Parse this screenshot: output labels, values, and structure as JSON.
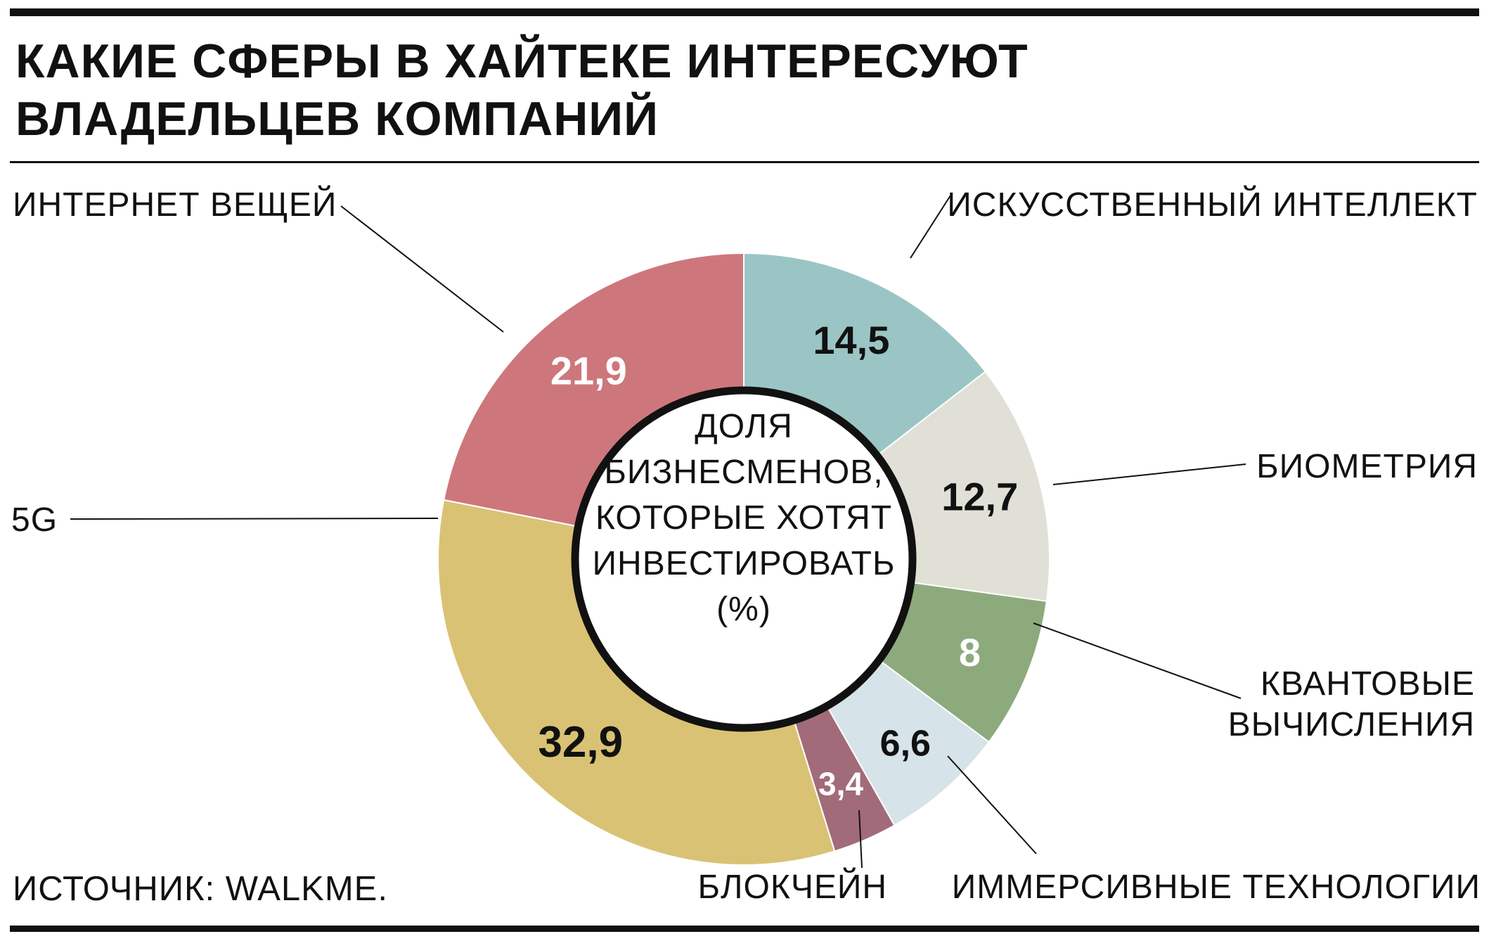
{
  "title": {
    "line1": "КАКИЕ СФЕРЫ В ХАЙТЕКЕ ИНТЕРЕСУЮТ",
    "line2": "ВЛАДЕЛЬЦЕВ КОМПАНИЙ"
  },
  "source": "ИСТОЧНИК: WALKME.",
  "chart_data": {
    "type": "pie",
    "donut": true,
    "unit": "%",
    "center_label": [
      "ДОЛЯ",
      "БИЗНЕСМЕНОВ,",
      "КОТОРЫЕ ХОТЯТ",
      "ИНВЕСТИРОВАТЬ",
      "(%)"
    ],
    "slices": [
      {
        "label": [
          "ИСКУССТВЕННЫЙ ИНТЕЛЛЕКТ"
        ],
        "value": 14.5,
        "display": "14,5",
        "color": "#9bc5c5",
        "text_color": "#111111"
      },
      {
        "label": [
          "БИОМЕТРИЯ"
        ],
        "value": 12.7,
        "display": "12,7",
        "color": "#e0e0d6",
        "text_color": "#111111"
      },
      {
        "label": [
          "КВАНТОВЫЕ",
          "ВЫЧИСЛЕНИЯ"
        ],
        "value": 8,
        "display": "8",
        "color": "#8daa7c",
        "text_color": "#ffffff"
      },
      {
        "label": [
          "ИММЕРСИВНЫЕ ТЕХНОЛОГИИ"
        ],
        "value": 6.6,
        "display": "6,6",
        "color": "#d6e3e8",
        "text_color": "#111111"
      },
      {
        "label": [
          "БЛОКЧЕЙН"
        ],
        "value": 3.4,
        "display": "3,4",
        "color": "#a26b79",
        "text_color": "#ffffff"
      },
      {
        "label": [
          "5G"
        ],
        "value": 32.9,
        "display": "32,9",
        "color": "#d9c274",
        "text_color": "#111111"
      },
      {
        "label": [
          "ИНТЕРНЕТ ВЕЩЕЙ"
        ],
        "value": 21.9,
        "display": "21,9",
        "color": "#cd777c",
        "text_color": "#ffffff"
      }
    ]
  }
}
